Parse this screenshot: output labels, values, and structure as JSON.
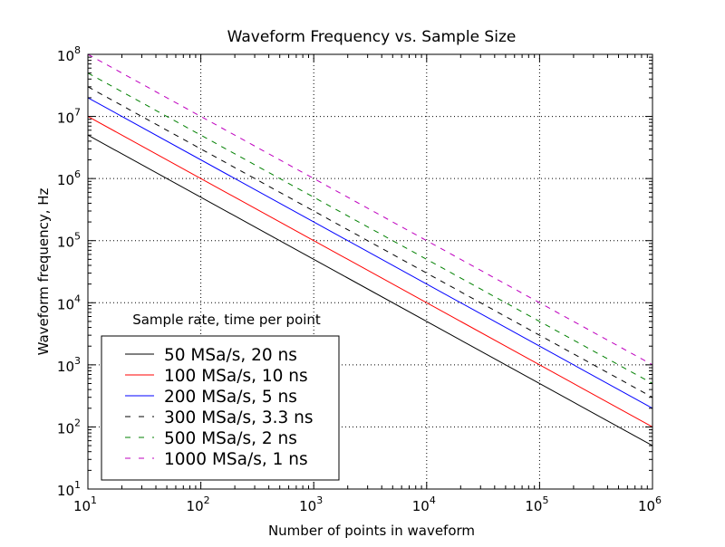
{
  "chart_data": {
    "type": "line",
    "title": "Waveform Frequency vs. Sample Size",
    "xlabel": "Number of points in waveform",
    "ylabel": "Waveform frequency, Hz",
    "xscale": "log",
    "yscale": "log",
    "xlim": [
      10,
      1000000
    ],
    "ylim": [
      10,
      100000000
    ],
    "x_ticks": [
      {
        "base": "10",
        "exp": "1",
        "value": 10
      },
      {
        "base": "10",
        "exp": "2",
        "value": 100
      },
      {
        "base": "10",
        "exp": "3",
        "value": 1000
      },
      {
        "base": "10",
        "exp": "4",
        "value": 10000
      },
      {
        "base": "10",
        "exp": "5",
        "value": 100000
      },
      {
        "base": "10",
        "exp": "6",
        "value": 1000000
      }
    ],
    "y_ticks": [
      {
        "base": "10",
        "exp": "1",
        "value": 10
      },
      {
        "base": "10",
        "exp": "2",
        "value": 100
      },
      {
        "base": "10",
        "exp": "3",
        "value": 1000
      },
      {
        "base": "10",
        "exp": "4",
        "value": 10000
      },
      {
        "base": "10",
        "exp": "5",
        "value": 100000
      },
      {
        "base": "10",
        "exp": "6",
        "value": 1000000
      },
      {
        "base": "10",
        "exp": "7",
        "value": 10000000
      },
      {
        "base": "10",
        "exp": "8",
        "value": 100000000
      }
    ],
    "grid": true,
    "legend": {
      "title": "Sample rate, time per point",
      "placement": "lower-left"
    },
    "x": [
      10,
      1000000
    ],
    "series": [
      {
        "name": "50 MSa/s, 20 ns",
        "color": "#000000",
        "dash": "solid",
        "values": [
          5000000,
          50
        ]
      },
      {
        "name": "100 MSa/s, 10 ns",
        "color": "#ff0000",
        "dash": "solid",
        "values": [
          10000000,
          100
        ]
      },
      {
        "name": "200 MSa/s, 5 ns",
        "color": "#0000ff",
        "dash": "solid",
        "values": [
          20000000,
          200
        ]
      },
      {
        "name": "300 MSa/s, 3.3 ns",
        "color": "#000000",
        "dash": "dashed",
        "values": [
          30000000,
          300
        ]
      },
      {
        "name": "500 MSa/s, 2 ns",
        "color": "#008000",
        "dash": "dashed",
        "values": [
          50000000,
          500
        ]
      },
      {
        "name": "1000 MSa/s, 1 ns",
        "color": "#bf00bf",
        "dash": "dashed",
        "values": [
          100000000,
          1000
        ]
      }
    ]
  }
}
